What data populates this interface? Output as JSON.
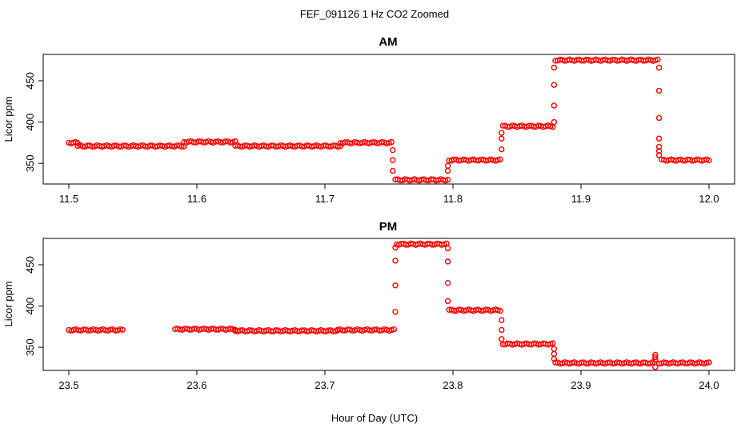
{
  "figure": {
    "title": "FEF_091126  1 Hz CO2 Zoomed",
    "xlabel": "Hour of Day (UTC)",
    "point_color": "#ff0000"
  },
  "chart_data": [
    {
      "type": "scatter",
      "title": "AM",
      "xlabel": "",
      "ylabel": "Licor ppm",
      "xlim": [
        11.48,
        12.02
      ],
      "ylim": [
        325,
        482
      ],
      "xticks": [
        11.5,
        11.6,
        11.7,
        11.8,
        11.9,
        12.0
      ],
      "xtick_labels": [
        "11.5",
        "11.6",
        "11.7",
        "11.8",
        "11.9",
        "12.0"
      ],
      "yticks": [
        350,
        400,
        450
      ],
      "ytick_labels": [
        "350",
        "400",
        "450"
      ],
      "grid": false,
      "legend": "none",
      "segments": [
        {
          "x": [
            11.5,
            11.507
          ],
          "y": 375
        },
        {
          "x": [
            11.507,
            11.59
          ],
          "y": 371
        },
        {
          "x": [
            11.59,
            11.63
          ],
          "y": 376
        },
        {
          "x": [
            11.63,
            11.712
          ],
          "y": 371
        },
        {
          "x": [
            11.712,
            11.752
          ],
          "y": 375
        },
        {
          "x": [
            11.755,
            11.796
          ],
          "y": 330
        },
        {
          "x": [
            11.797,
            11.837
          ],
          "y": 354
        },
        {
          "x": [
            11.839,
            11.878
          ],
          "y": 395
        },
        {
          "x": [
            11.88,
            11.96
          ],
          "y": 475
        },
        {
          "x": [
            11.963,
            12.0
          ],
          "y": 354
        }
      ],
      "transitions": [
        {
          "x": 11.753,
          "y": [
            366,
            354,
            341
          ]
        },
        {
          "x": 11.796,
          "y": [
            341,
            347
          ]
        },
        {
          "x": 11.838,
          "y": [
            367,
            380,
            387
          ]
        },
        {
          "x": 11.879,
          "y": [
            400,
            420,
            445,
            466
          ]
        },
        {
          "x": 11.961,
          "y": [
            466,
            438,
            405,
            380,
            370,
            365,
            360
          ]
        }
      ]
    },
    {
      "type": "scatter",
      "title": "PM",
      "xlabel": "",
      "ylabel": "Licor ppm",
      "xlim": [
        23.48,
        24.02
      ],
      "ylim": [
        322,
        482
      ],
      "xticks": [
        23.5,
        23.6,
        23.7,
        23.8,
        23.9,
        24.0
      ],
      "xtick_labels": [
        "23.5",
        "23.6",
        "23.7",
        "23.8",
        "23.9",
        "24.0"
      ],
      "yticks": [
        350,
        400,
        450
      ],
      "ytick_labels": [
        "350",
        "400",
        "450"
      ],
      "grid": false,
      "legend": "none",
      "segments": [
        {
          "x": [
            23.5,
            23.542
          ],
          "y": 371
        },
        {
          "x": [
            23.583,
            23.63
          ],
          "y": 372
        },
        {
          "x": [
            23.63,
            23.71
          ],
          "y": 370
        },
        {
          "x": [
            23.71,
            23.754
          ],
          "y": 371
        },
        {
          "x": [
            23.756,
            23.795
          ],
          "y": 475
        },
        {
          "x": [
            23.797,
            23.837
          ],
          "y": 395
        },
        {
          "x": [
            23.839,
            23.878
          ],
          "y": 354
        },
        {
          "x": [
            23.88,
            23.956
          ],
          "y": 331
        },
        {
          "x": [
            23.961,
            24.0
          ],
          "y": 331
        }
      ],
      "transitions": [
        {
          "x": 23.755,
          "y": [
            393,
            425,
            455,
            471
          ]
        },
        {
          "x": 23.796,
          "y": [
            470,
            454,
            428,
            406
          ]
        },
        {
          "x": 23.838,
          "y": [
            383,
            371,
            360
          ]
        },
        {
          "x": 23.879,
          "y": [
            348,
            342,
            336
          ]
        },
        {
          "x": 23.958,
          "y": [
            326,
            338,
            341,
            335
          ]
        }
      ]
    }
  ]
}
